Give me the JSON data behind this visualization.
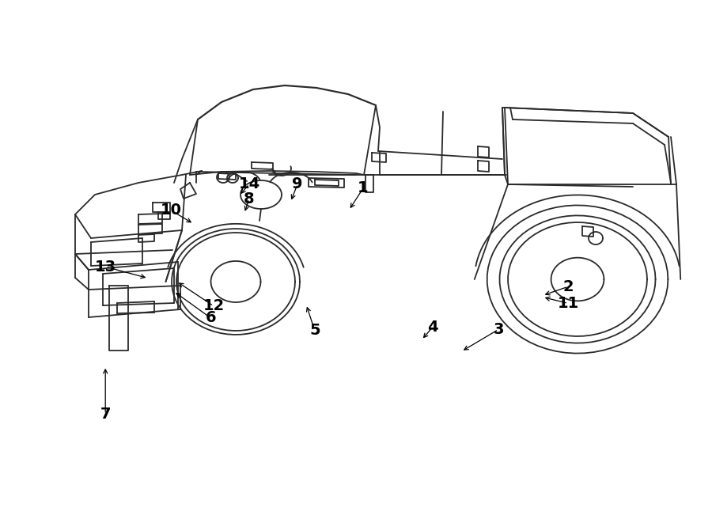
{
  "bg_color": "#ffffff",
  "line_color": "#2a2a2a",
  "label_color": "#000000",
  "figsize": [
    9.0,
    6.61
  ],
  "dpi": 100,
  "lw": 1.3,
  "label_fontsize": 14,
  "labels": {
    "1": [
      0.51,
      0.64,
      0.49,
      0.598
    ],
    "2": [
      0.798,
      0.452,
      0.762,
      0.435
    ],
    "3": [
      0.7,
      0.37,
      0.648,
      0.328
    ],
    "4": [
      0.608,
      0.375,
      0.592,
      0.35
    ],
    "5": [
      0.442,
      0.368,
      0.43,
      0.418
    ],
    "6": [
      0.296,
      0.392,
      0.244,
      0.443
    ],
    "7": [
      0.148,
      0.208,
      0.148,
      0.3
    ],
    "8": [
      0.35,
      0.62,
      0.343,
      0.592
    ],
    "9": [
      0.418,
      0.648,
      0.408,
      0.614
    ],
    "10": [
      0.24,
      0.598,
      0.272,
      0.572
    ],
    "11": [
      0.798,
      0.42,
      0.762,
      0.432
    ],
    "12": [
      0.3,
      0.415,
      0.248,
      0.462
    ],
    "13": [
      0.148,
      0.49,
      0.208,
      0.468
    ],
    "14": [
      0.35,
      0.648,
      0.336,
      0.626
    ]
  }
}
